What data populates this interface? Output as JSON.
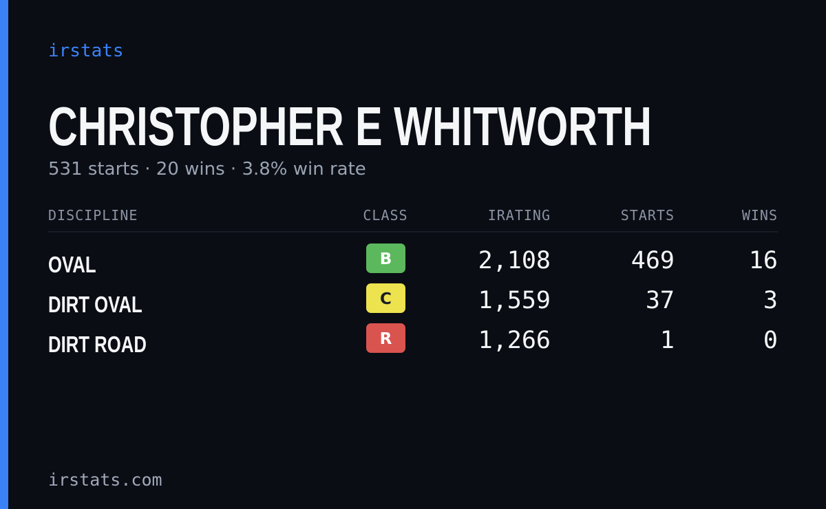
{
  "brand": "irstats",
  "driver": {
    "name": "CHRISTOPHER E WHITWORTH",
    "summary": "531 starts · 20 wins · 3.8% win rate"
  },
  "table": {
    "headers": [
      "DISCIPLINE",
      "CLASS",
      "IRATING",
      "STARTS",
      "WINS"
    ],
    "rows": [
      {
        "discipline": "OVAL",
        "class": "B",
        "color": "#5cb85c",
        "irating": "2,108",
        "starts": "469",
        "wins": "16"
      },
      {
        "discipline": "DIRT OVAL",
        "class": "C",
        "color": "#ece34e",
        "irating": "1,559",
        "starts": "37",
        "wins": "3"
      },
      {
        "discipline": "DIRT ROAD",
        "class": "R",
        "color": "#d9534f",
        "irating": "1,266",
        "starts": "1",
        "wins": "0"
      }
    ]
  },
  "footer": "irstats.com"
}
